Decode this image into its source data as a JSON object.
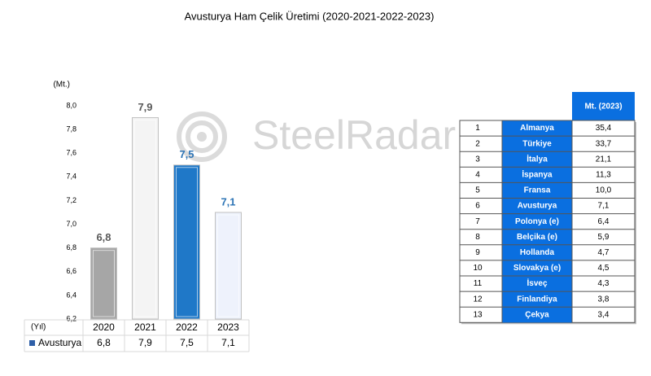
{
  "chart_data": {
    "type": "bar",
    "title": "Avusturya Ham Çelik Üretimi (2020-2021-2022-2023)",
    "y_label": "(Mt.)",
    "x_label": "(Yıl)",
    "series_name": "Avusturya",
    "categories": [
      "2020",
      "2021",
      "2022",
      "2023"
    ],
    "values": [
      6.8,
      7.9,
      7.5,
      7.1
    ],
    "value_labels": [
      "6,8",
      "7,9",
      "7,5",
      "7,1"
    ],
    "colors": [
      "#a6a6a6",
      "#f4f4f4",
      "#1f78c8",
      "#eef2fc"
    ],
    "label_colors": [
      "#595959",
      "#595959",
      "#2e75b6",
      "#2e75b6"
    ],
    "legend_color": "#2e5fa8",
    "ylim": [
      6.2,
      8.0
    ],
    "yticks": [
      {
        "value": 6.2,
        "label": "6,2"
      },
      {
        "value": 6.4,
        "label": "6,4"
      },
      {
        "value": 6.6,
        "label": "6,6"
      },
      {
        "value": 6.8,
        "label": "6,8"
      },
      {
        "value": 7.0,
        "label": "7,0"
      },
      {
        "value": 7.2,
        "label": "7,2"
      },
      {
        "value": 7.4,
        "label": "7,4"
      },
      {
        "value": 7.6,
        "label": "7,6"
      },
      {
        "value": 7.8,
        "label": "7,8"
      },
      {
        "value": 8.0,
        "label": "8,0"
      }
    ]
  },
  "watermark": "SteelRadar",
  "table": {
    "header": "Mt. (2023)",
    "rows": [
      [
        "1",
        "Almanya",
        "35,4"
      ],
      [
        "2",
        "Türkiye",
        "33,7"
      ],
      [
        "3",
        "İtalya",
        "21,1"
      ],
      [
        "4",
        "İspanya",
        "11,3"
      ],
      [
        "5",
        "Fransa",
        "10,0"
      ],
      [
        "6",
        "Avusturya",
        "7,1"
      ],
      [
        "7",
        "Polonya (e)",
        "6,4"
      ],
      [
        "8",
        "Belçika (e)",
        "5,9"
      ],
      [
        "9",
        "Hollanda",
        "4,7"
      ],
      [
        "10",
        "Slovakya (e)",
        "4,5"
      ],
      [
        "11",
        "İsveç",
        "4,3"
      ],
      [
        "12",
        "Finlandiya",
        "3,8"
      ],
      [
        "13",
        "Çekya",
        "3,4"
      ]
    ]
  }
}
